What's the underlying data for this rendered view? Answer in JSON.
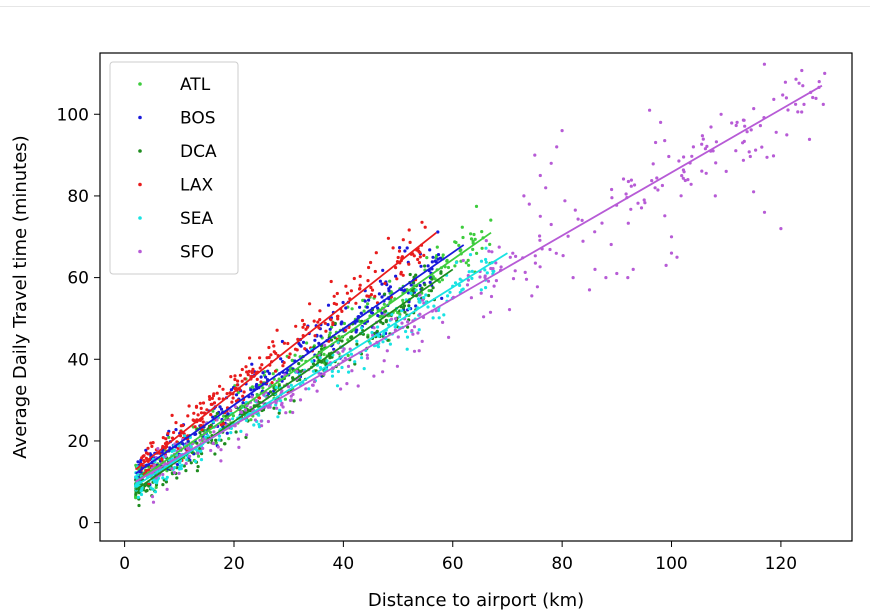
{
  "chart_data": {
    "type": "scatter",
    "title": "",
    "xlabel": "Distance to airport (km)",
    "ylabel": "Average Daily Travel time (minutes)",
    "xlim": [
      -4.5,
      133
    ],
    "ylim": [
      -4.5,
      115
    ],
    "xticks": [
      0,
      20,
      40,
      60,
      80,
      100,
      120
    ],
    "yticks": [
      0,
      20,
      40,
      60,
      80,
      100
    ],
    "grid": false,
    "legend_position": "upper-left",
    "series": [
      {
        "name": "ATL",
        "color": "#3dcc3d",
        "fit": {
          "x0": 2,
          "y0": 10,
          "x1": 67,
          "y1": 71
        },
        "cluster": {
          "xmin": 2,
          "xmax": 67,
          "noise": 7,
          "n": 330
        }
      },
      {
        "name": "BOS",
        "color": "#1a1adb",
        "fit": {
          "x0": 2,
          "y0": 12,
          "x1": 62,
          "y1": 68
        },
        "cluster": {
          "xmin": 2,
          "xmax": 58,
          "noise": 7,
          "n": 280
        }
      },
      {
        "name": "DCA",
        "color": "#1e8c1e",
        "fit": {
          "x0": 2,
          "y0": 8,
          "x1": 60,
          "y1": 62
        },
        "cluster": {
          "xmin": 2,
          "xmax": 58,
          "noise": 6,
          "n": 280
        }
      },
      {
        "name": "LAX",
        "color": "#e81c1c",
        "fit": {
          "x0": 2,
          "y0": 13,
          "x1": 57,
          "y1": 71
        },
        "cluster": {
          "xmin": 3,
          "xmax": 55,
          "noise": 7,
          "n": 280
        }
      },
      {
        "name": "SEA",
        "color": "#19e3e3",
        "fit": {
          "x0": 2,
          "y0": 9,
          "x1": 70,
          "y1": 66
        },
        "cluster": {
          "xmin": 2,
          "xmax": 68,
          "noise": 6,
          "n": 260
        }
      },
      {
        "name": "SFO",
        "color": "#b75bd6",
        "fit": {
          "x0": 2,
          "y0": 10,
          "x1": 127.5,
          "y1": 107
        },
        "cluster": {
          "xmin": 5,
          "xmax": 128,
          "noise": 9,
          "n": 320
        },
        "points": [
          [
            75,
            90
          ],
          [
            76,
            85
          ],
          [
            77,
            82
          ],
          [
            78,
            88
          ],
          [
            79,
            92
          ],
          [
            80,
            96
          ],
          [
            74,
            78
          ],
          [
            73,
            80
          ],
          [
            76,
            75
          ],
          [
            78,
            73
          ],
          [
            82,
            60
          ],
          [
            85,
            57
          ],
          [
            86,
            62
          ],
          [
            88,
            60
          ],
          [
            92,
            60
          ],
          [
            96,
            101
          ],
          [
            98,
            98
          ],
          [
            100,
            66
          ],
          [
            100,
            70
          ],
          [
            103,
            84
          ],
          [
            108,
            80
          ],
          [
            110,
            86
          ],
          [
            112,
            98
          ],
          [
            115,
            81
          ],
          [
            117,
            76
          ],
          [
            120,
            72
          ],
          [
            121,
            104
          ],
          [
            124,
            107
          ],
          [
            127,
            108
          ],
          [
            128,
            110
          ],
          [
            101,
            65
          ],
          [
            99,
            63
          ],
          [
            93,
            62
          ],
          [
            90,
            61
          ],
          [
            113,
            93
          ],
          [
            104,
            92
          ],
          [
            95,
            79
          ],
          [
            97,
            82
          ]
        ]
      }
    ]
  }
}
